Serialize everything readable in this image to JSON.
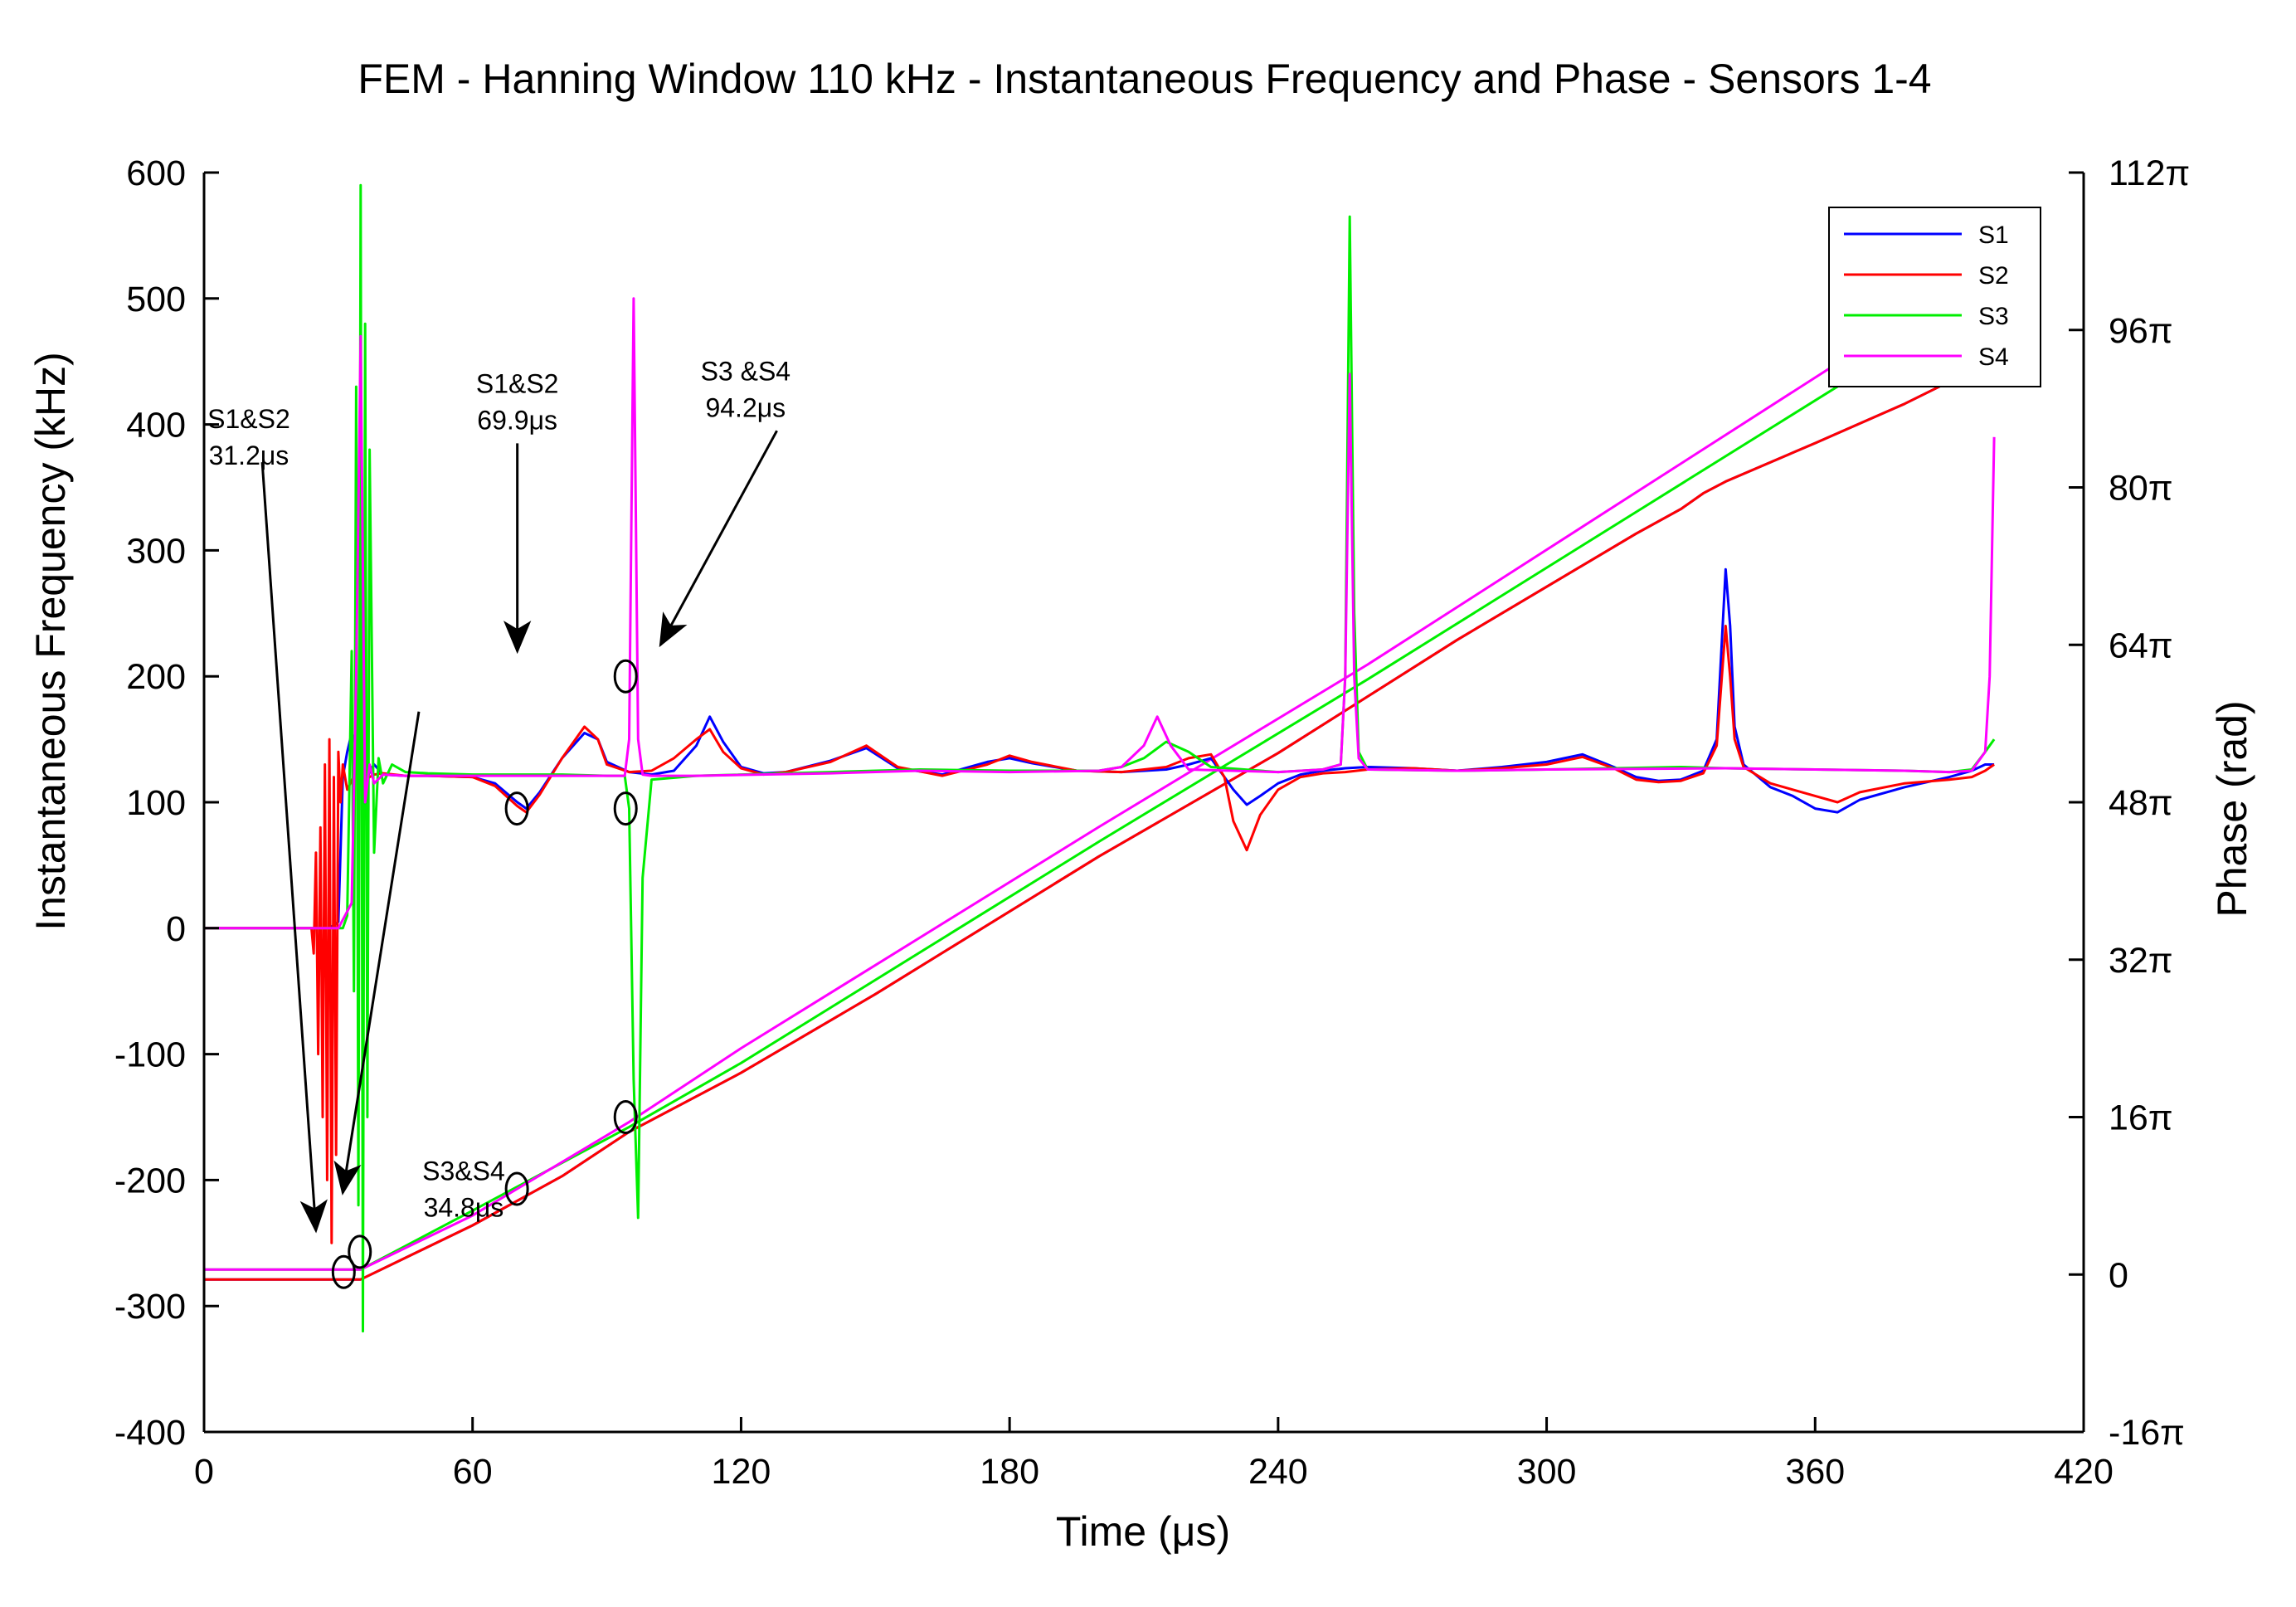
{
  "chart_data": {
    "type": "line",
    "title": "FEM - Hanning Window 110 kHz - Instantaneous Frequency and Phase - Sensors 1-4",
    "xlabel": "Time (μs)",
    "ylabel": "Instantaneous Frequency (kHz)",
    "y2label": "Phase (rad)",
    "xlim": [
      0,
      420
    ],
    "ylim": [
      -400,
      600
    ],
    "y2lim": [
      -16,
      112
    ],
    "y2unit": "π",
    "x_ticks": [
      0,
      60,
      120,
      180,
      240,
      300,
      360,
      420
    ],
    "x_tick_labels": [
      "0",
      "60",
      "120",
      "180",
      "240",
      "300",
      "360",
      "420"
    ],
    "y_ticks": [
      -400,
      -300,
      -200,
      -100,
      0,
      100,
      200,
      300,
      400,
      500,
      600
    ],
    "y_tick_labels": [
      "-400",
      "-300",
      "-200",
      "-100",
      "0",
      "100",
      "200",
      "300",
      "400",
      "500",
      "600"
    ],
    "y2_ticks": [
      -16,
      0,
      16,
      32,
      48,
      64,
      80,
      96,
      112
    ],
    "y2_tick_labels": [
      "-16π",
      "0",
      "16π",
      "32π",
      "48π",
      "64π",
      "80π",
      "96π",
      "112π"
    ],
    "legend": {
      "position": "top-right",
      "entries": [
        "S1",
        "S2",
        "S3",
        "S4"
      ]
    },
    "colors": {
      "S1": "#0000ff",
      "S2": "#ff0000",
      "S3": "#00ee00",
      "S4": "#ff00ff"
    },
    "series": [
      {
        "name": "S1",
        "frequency": {
          "x": [
            0,
            28,
            30,
            31,
            32,
            33,
            34,
            35,
            36,
            37,
            38,
            40,
            45,
            50,
            60,
            65,
            70,
            72,
            75,
            80,
            85,
            88,
            90,
            95,
            100,
            105,
            110,
            113,
            116,
            120,
            125,
            130,
            140,
            148,
            155,
            165,
            175,
            180,
            185,
            195,
            205,
            215,
            220,
            225,
            230,
            233,
            236,
            240,
            245,
            250,
            255,
            260,
            270,
            280,
            290,
            300,
            308,
            315,
            320,
            325,
            330,
            335,
            338,
            340,
            341,
            342,
            344,
            350,
            355,
            360,
            365,
            370,
            380,
            390,
            395,
            398,
            400
          ],
          "y": [
            0,
            0,
            5,
            120,
            140,
            155,
            145,
            120,
            110,
            125,
            130,
            122,
            121,
            121,
            120,
            115,
            100,
            95,
            108,
            135,
            155,
            150,
            132,
            124,
            122,
            125,
            145,
            168,
            148,
            128,
            123,
            124,
            133,
            143,
            127,
            122,
            132,
            135,
            131,
            125,
            124,
            126,
            130,
            135,
            110,
            98,
            105,
            115,
            122,
            125,
            127,
            128,
            127,
            125,
            128,
            132,
            138,
            128,
            120,
            117,
            118,
            125,
            150,
            285,
            240,
            160,
            130,
            112,
            105,
            95,
            92,
            102,
            112,
            120,
            125,
            130,
            130
          ]
        },
        "phase": {
          "x": [
            0,
            30,
            35,
            60,
            70,
            80,
            95,
            120,
            150,
            200,
            240,
            280,
            320,
            330,
            335,
            340,
            360,
            380,
            400
          ],
          "y": [
            -0.5,
            -0.5,
            -0.5,
            5.0,
            7.5,
            10.0,
            14.5,
            20.5,
            28.5,
            42.5,
            53.0,
            64.5,
            75.3,
            77.8,
            79.4,
            80.6,
            84.5,
            88.5,
            93.0
          ]
        }
      },
      {
        "name": "S2",
        "frequency": {
          "x": [
            0,
            24,
            24.5,
            25,
            25.5,
            26,
            26.5,
            27,
            27.5,
            28,
            28.5,
            29,
            29.5,
            30,
            30.5,
            31,
            32,
            34,
            36,
            38,
            40,
            45,
            50,
            60,
            65,
            70,
            72,
            75,
            80,
            85,
            88,
            90,
            95,
            100,
            105,
            110,
            113,
            116,
            120,
            125,
            130,
            140,
            148,
            155,
            165,
            175,
            180,
            185,
            195,
            205,
            215,
            220,
            225,
            228,
            230,
            233,
            236,
            240,
            245,
            250,
            255,
            260,
            270,
            280,
            290,
            300,
            308,
            315,
            320,
            325,
            330,
            335,
            338,
            340,
            341,
            342,
            344,
            350,
            355,
            360,
            365,
            370,
            380,
            390,
            395,
            398,
            400
          ],
          "y": [
            0,
            0,
            -20,
            60,
            -100,
            80,
            -150,
            130,
            -200,
            150,
            -250,
            120,
            -180,
            140,
            100,
            130,
            110,
            125,
            118,
            122,
            123,
            121,
            121,
            120,
            113,
            97,
            92,
            106,
            135,
            160,
            150,
            130,
            124,
            125,
            135,
            150,
            158,
            140,
            127,
            122,
            124,
            132,
            145,
            128,
            121,
            130,
            137,
            132,
            125,
            124,
            128,
            135,
            138,
            120,
            85,
            62,
            90,
            110,
            120,
            123,
            124,
            126,
            127,
            125,
            127,
            130,
            136,
            127,
            118,
            116,
            117,
            123,
            145,
            240,
            200,
            150,
            128,
            115,
            110,
            105,
            100,
            108,
            115,
            118,
            120,
            125,
            130
          ]
        },
        "phase": {
          "x": [
            0,
            30,
            35,
            60,
            70,
            80,
            95,
            120,
            150,
            200,
            240,
            280,
            320,
            330,
            335,
            340,
            360,
            380,
            400
          ],
          "y": [
            -0.5,
            -0.5,
            -0.5,
            5.0,
            7.5,
            10.0,
            14.5,
            20.5,
            28.5,
            42.5,
            53.0,
            64.5,
            75.3,
            77.8,
            79.4,
            80.6,
            84.5,
            88.5,
            93.0
          ]
        }
      },
      {
        "name": "S3",
        "frequency": {
          "x": [
            0,
            31,
            32,
            33,
            33.5,
            34,
            34.5,
            35,
            35.5,
            36,
            36.5,
            37,
            38,
            39,
            40,
            42,
            45,
            50,
            60,
            80,
            90,
            94,
            95,
            96,
            97,
            98,
            100,
            110,
            140,
            160,
            180,
            200,
            205,
            210,
            215,
            220,
            225,
            240,
            250,
            254,
            255,
            256,
            257,
            258,
            260,
            280,
            300,
            330,
            340,
            360,
            380,
            390,
            395,
            398,
            400
          ],
          "y": [
            0,
            0,
            10,
            220,
            -50,
            430,
            -220,
            590,
            -320,
            480,
            -150,
            380,
            60,
            135,
            115,
            130,
            124,
            123,
            122,
            122,
            121,
            121,
            95,
            -120,
            -230,
            40,
            118,
            121,
            124,
            126,
            125,
            125,
            128,
            135,
            148,
            140,
            128,
            124,
            126,
            130,
            200,
            565,
            250,
            140,
            126,
            125,
            126,
            128,
            127,
            126,
            125,
            124,
            126,
            140,
            150
          ]
        },
        "phase": {
          "x": [
            0,
            35,
            60,
            95,
            120,
            200,
            260,
            320,
            380,
            395
          ],
          "y": [
            0.5,
            0.5,
            6.5,
            15.0,
            21.5,
            44.0,
            60.5,
            77.5,
            94.5,
            98.5
          ]
        }
      },
      {
        "name": "S4",
        "frequency": {
          "x": [
            0,
            30,
            33,
            34,
            35,
            36,
            37,
            38,
            40,
            45,
            50,
            60,
            80,
            94,
            95,
            96,
            97,
            98,
            100,
            110,
            140,
            160,
            180,
            200,
            205,
            210,
            213,
            216,
            220,
            240,
            250,
            254,
            255,
            256,
            257,
            258,
            260,
            280,
            300,
            340,
            360,
            380,
            390,
            395,
            398,
            399,
            400
          ],
          "y": [
            0,
            0,
            20,
            200,
            470,
            100,
            130,
            115,
            122,
            121,
            121,
            121,
            121,
            121,
            150,
            500,
            150,
            122,
            121,
            121,
            123,
            125,
            124,
            125,
            128,
            145,
            168,
            145,
            126,
            124,
            126,
            130,
            200,
            440,
            200,
            135,
            126,
            125,
            126,
            127,
            126,
            125,
            124,
            125,
            140,
            200,
            390
          ]
        },
        "phase": {
          "x": [
            0,
            35,
            60,
            95,
            120,
            200,
            260,
            320,
            380,
            388
          ],
          "y": [
            0.5,
            0.5,
            6.0,
            15.5,
            23.0,
            45.5,
            62.0,
            79.5,
            97.0,
            99.5
          ]
        }
      }
    ],
    "annotations": [
      {
        "lines": [
          "S1&S2",
          "31.2μs"
        ],
        "label_at": [
          10,
          397
        ],
        "arrow_from": [
          13,
          370
        ],
        "arrow_to": [
          25,
          -240
        ]
      },
      {
        "lines": [
          "S3&S4",
          "34.8μs"
        ],
        "label_at": [
          58,
          -200
        ],
        "arrow_from": [
          48,
          172
        ],
        "arrow_to": [
          31,
          -210
        ]
      },
      {
        "lines": [
          "S1&S2",
          "69.9μs"
        ],
        "label_at": [
          70,
          425
        ],
        "arrow_from": [
          70,
          385
        ],
        "arrow_to": [
          70,
          220
        ]
      },
      {
        "lines": [
          "S3 &S4",
          "94.2μs"
        ],
        "label_at": [
          121,
          435
        ],
        "arrow_from": [
          128,
          395
        ],
        "arrow_to": [
          102,
          225
        ]
      }
    ],
    "markers": [
      {
        "x": 94.2,
        "y": 200
      },
      {
        "x": 69.9,
        "y": 95
      },
      {
        "x": 94.2,
        "y": 95
      },
      {
        "x": 94.2,
        "y": -150
      },
      {
        "x": 69.9,
        "y": -207
      },
      {
        "x": 34.8,
        "y": -257
      },
      {
        "x": 31.2,
        "y": -273
      }
    ]
  }
}
